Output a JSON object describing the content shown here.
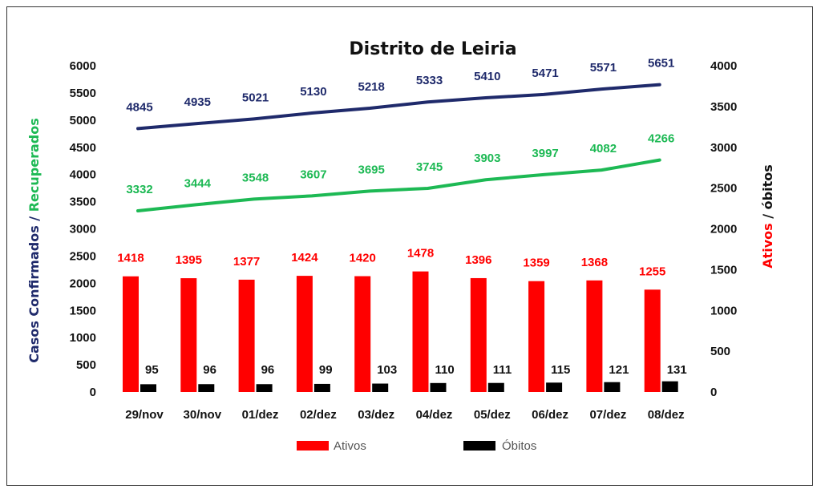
{
  "chart_data": {
    "type": "bar",
    "title": "Distrito de Leiria",
    "categories": [
      "29/nov",
      "30/nov",
      "01/dez",
      "02/dez",
      "03/dez",
      "04/dez",
      "05/dez",
      "06/dez",
      "07/dez",
      "08/dez"
    ],
    "ylabel_left": [
      "Casos Confirmados",
      " / ",
      "Recuperados"
    ],
    "ylabel_right": [
      "Ativos",
      " / ",
      "óbitos"
    ],
    "ylim_left": [
      0,
      6000
    ],
    "ylim_right": [
      0,
      4000
    ],
    "left_ticks": [
      "0",
      "500",
      "1000",
      "1500",
      "2000",
      "2500",
      "3000",
      "3500",
      "4000",
      "4500",
      "5000",
      "5500",
      "6000"
    ],
    "right_ticks": [
      "0",
      "500",
      "1000",
      "1500",
      "2000",
      "2500",
      "3000",
      "3500",
      "4000"
    ],
    "grid": false,
    "legend_position": "bottom",
    "series": [
      {
        "name": "Casos Confirmados",
        "kind": "line",
        "axis": "left",
        "color": "#1F2A6B",
        "values": [
          4845,
          4935,
          5021,
          5130,
          5218,
          5333,
          5410,
          5471,
          5571,
          5651
        ]
      },
      {
        "name": "Recuperados",
        "kind": "line",
        "axis": "left",
        "color": "#1DB954",
        "values": [
          3332,
          3444,
          3548,
          3607,
          3695,
          3745,
          3903,
          3997,
          4082,
          4266
        ]
      },
      {
        "name": "Ativos",
        "kind": "bar",
        "axis": "right",
        "color": "#FF0000",
        "values": [
          1418,
          1395,
          1377,
          1424,
          1420,
          1478,
          1396,
          1359,
          1368,
          1255
        ]
      },
      {
        "name": "Óbitos",
        "kind": "bar",
        "axis": "right",
        "color": "#000000",
        "values": [
          95,
          96,
          96,
          99,
          103,
          110,
          111,
          115,
          121,
          131
        ]
      }
    ],
    "legend": [
      {
        "label": "Ativos",
        "color": "#FF0000"
      },
      {
        "label": "Óbitos",
        "color": "#000000"
      }
    ]
  }
}
